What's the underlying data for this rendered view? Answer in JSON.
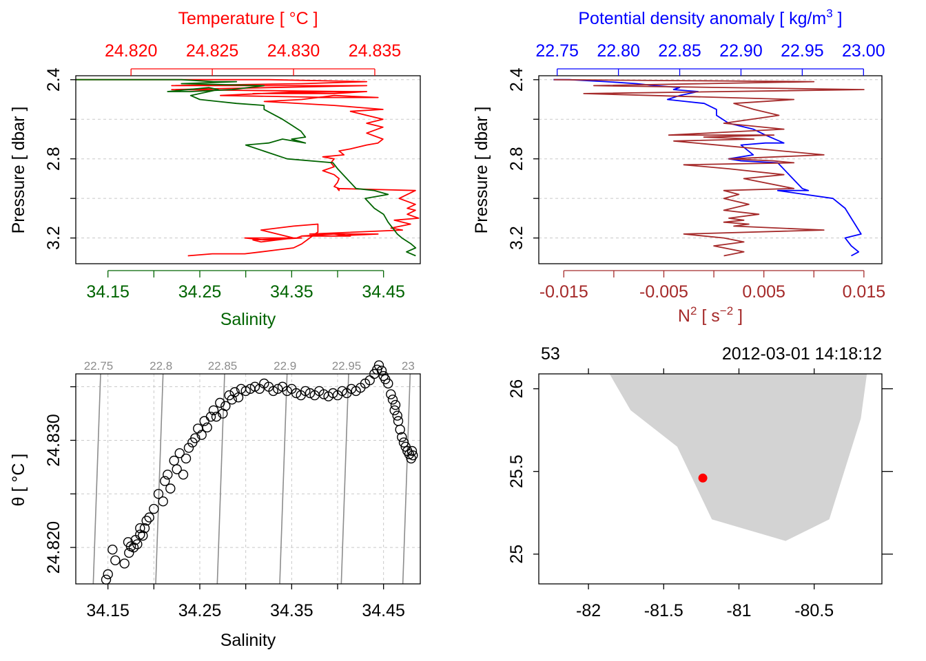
{
  "colors": {
    "temperature": "#ff0000",
    "salinity": "#006400",
    "density": "#0000ff",
    "n2": "#a52a2a",
    "isopycnal": "#8c8c8c",
    "land": "#d3d3d3",
    "station": "#ff0000",
    "grid": "#c8c8c8"
  },
  "chart_data": [
    {
      "type": "line",
      "panel": "profile-temperature-salinity",
      "top_axis": {
        "label": "Temperature [ °C ]",
        "range": [
          24.8166,
          24.8378
        ],
        "ticks": [
          "24.820",
          "24.825",
          "24.830",
          "24.835"
        ]
      },
      "bottom_axis": {
        "label": "Salinity",
        "range": [
          34.115,
          34.49
        ],
        "ticks": [
          "34.15",
          "34.25",
          "34.35",
          "34.45"
        ]
      },
      "y_axis": {
        "label": "Pressure [ dbar ]",
        "range": [
          3.33,
          2.38
        ],
        "inverted": true,
        "ticks": [
          "2.4",
          "2.8",
          "3.2"
        ],
        "grid_ticks": [
          2.4,
          2.6,
          2.8,
          3.0,
          3.2
        ]
      },
      "series": [
        {
          "name": "Temperature",
          "color_key": "temperature",
          "x": [
            24.8166,
            24.8205,
            24.8285,
            24.8345,
            24.8305,
            24.8225,
            24.8345,
            24.8225,
            24.8335,
            24.8275,
            24.8325,
            24.8345,
            24.8305,
            24.8255,
            24.8325,
            24.8352,
            24.8325,
            24.8305,
            24.8282,
            24.8325,
            24.8355,
            24.8335,
            24.8345,
            24.8355,
            24.8345,
            24.8355,
            24.8345,
            24.8355,
            24.8352,
            24.8345,
            24.8335,
            24.8328,
            24.8331,
            24.8318,
            24.8325,
            24.8323,
            24.8325,
            24.8318,
            24.8325,
            24.8328,
            24.8327,
            24.8325,
            24.8328,
            24.8328,
            24.8327,
            24.8375,
            24.8365,
            24.8375,
            24.837,
            24.8375,
            24.837,
            24.8377,
            24.8362,
            24.8372,
            24.836,
            24.8367,
            24.831,
            24.8352,
            24.8325,
            24.8305,
            24.8305,
            24.8325,
            24.8335,
            24.8305,
            24.8302,
            24.8282,
            24.827,
            24.8282,
            24.8305,
            24.8275,
            24.828,
            24.83,
            24.828,
            24.83,
            24.8315,
            24.8315,
            24.8315,
            24.831,
            24.8305,
            24.83,
            24.829,
            24.828,
            24.827,
            24.825,
            24.8235
          ],
          "y": [
            2.4,
            2.4,
            2.4,
            2.41,
            2.42,
            2.43,
            2.43,
            2.45,
            2.46,
            2.47,
            2.47,
            2.46,
            2.46,
            2.48,
            2.49,
            2.49,
            2.48,
            2.5,
            2.51,
            2.53,
            2.55,
            2.56,
            2.58,
            2.6,
            2.62,
            2.64,
            2.67,
            2.7,
            2.72,
            2.73,
            2.75,
            2.76,
            2.78,
            2.79,
            2.8,
            2.82,
            2.84,
            2.86,
            2.88,
            2.9,
            2.92,
            2.94,
            2.95,
            2.96,
            2.95,
            2.96,
            3.0,
            3.03,
            3.05,
            3.06,
            3.08,
            3.1,
            3.11,
            3.13,
            3.15,
            3.16,
            3.18,
            3.18,
            3.19,
            3.19,
            3.19,
            3.18,
            3.19,
            3.19,
            3.2,
            3.2,
            3.2,
            3.21,
            3.2,
            3.21,
            3.22,
            3.2,
            3.16,
            3.14,
            3.13,
            3.14,
            3.17,
            3.2,
            3.23,
            3.25,
            3.26,
            3.27,
            3.28,
            3.28,
            3.29
          ]
        },
        {
          "name": "Salinity",
          "color_key": "salinity",
          "x": [
            34.115,
            34.16,
            34.23,
            34.265,
            34.29,
            34.23,
            34.32,
            34.285,
            34.24,
            34.215,
            34.26,
            34.27,
            34.25,
            34.24,
            34.25,
            34.27,
            34.29,
            34.32,
            34.32,
            34.34,
            34.35,
            34.36,
            34.365,
            34.35,
            34.365,
            34.34,
            34.325,
            34.3,
            34.345,
            34.395,
            34.4,
            34.41,
            34.42,
            34.44,
            34.455,
            34.43,
            34.44,
            34.45,
            34.455,
            34.46,
            34.465,
            34.47,
            34.48,
            34.485,
            34.475,
            34.485
          ],
          "y": [
            2.4,
            2.4,
            2.4,
            2.41,
            2.41,
            2.42,
            2.43,
            2.45,
            2.46,
            2.46,
            2.44,
            2.45,
            2.47,
            2.48,
            2.5,
            2.51,
            2.52,
            2.53,
            2.55,
            2.6,
            2.63,
            2.66,
            2.69,
            2.7,
            2.72,
            2.7,
            2.72,
            2.73,
            2.8,
            2.82,
            2.85,
            2.9,
            2.95,
            2.96,
            2.98,
            3.0,
            3.05,
            3.08,
            3.12,
            3.15,
            3.18,
            3.2,
            3.23,
            3.25,
            3.27,
            3.29
          ]
        }
      ]
    },
    {
      "type": "line",
      "panel": "profile-density-n2",
      "top_axis": {
        "label": "Potential density anomaly [ kg/m",
        "label_sup": "3",
        "label_end": " ]",
        "range": [
          22.735,
          23.015
        ],
        "ticks": [
          "22.75",
          "22.80",
          "22.85",
          "22.90",
          "22.95",
          "23.00"
        ]
      },
      "bottom_axis": {
        "label": "N",
        "label_sup": "2",
        "label_mid": " [ s",
        "label_sup2": "−2",
        "label_end": " ]",
        "range": [
          -0.0175,
          0.0168
        ],
        "ticks": [
          "-0.015",
          "-0.005",
          "0.005",
          "0.015"
        ],
        "minor_ticks": [
          -0.01,
          0.0,
          0.01
        ]
      },
      "y_axis": {
        "label": "Pressure [ dbar ]",
        "range": [
          3.33,
          2.38
        ],
        "inverted": true,
        "ticks": [
          "2.4",
          "2.8",
          "3.2"
        ],
        "grid_ticks": [
          2.4,
          2.6,
          2.8,
          3.0,
          3.2
        ]
      },
      "series": [
        {
          "name": "Potential density anomaly",
          "color_key": "density",
          "x": [
            22.747,
            22.76,
            22.79,
            22.815,
            22.83,
            22.85,
            22.845,
            22.865,
            22.85,
            22.84,
            22.855,
            22.87,
            22.88,
            22.88,
            22.89,
            22.91,
            22.92,
            22.935,
            22.92,
            22.9,
            22.91,
            22.89,
            22.9,
            22.93,
            22.95,
            22.955,
            22.93,
            22.975,
            22.985,
            22.99,
            22.993,
            22.998,
            22.985,
            22.99,
            22.996,
            22.99
          ],
          "y": [
            2.4,
            2.4,
            2.41,
            2.42,
            2.43,
            2.44,
            2.45,
            2.46,
            2.48,
            2.5,
            2.51,
            2.52,
            2.55,
            2.58,
            2.62,
            2.65,
            2.68,
            2.72,
            2.72,
            2.73,
            2.78,
            2.8,
            2.81,
            2.82,
            2.95,
            2.96,
            2.96,
            3.0,
            3.05,
            3.1,
            3.13,
            3.18,
            3.2,
            3.24,
            3.27,
            3.29
          ]
        },
        {
          "name": "N2",
          "color_key": "n2",
          "x": [
            -0.016,
            0.01,
            -0.012,
            0.015,
            -0.013,
            0.008,
            0.002,
            0.004,
            0.0065,
            0.001,
            0.007,
            -0.0045,
            0.006,
            -0.001,
            0.004,
            -0.004,
            0.011,
            0.0015,
            0.006,
            0.008,
            -0.003,
            0.0015,
            0.007,
            0.003,
            0.008,
            0.001,
            0.0025,
            0.001,
            0.0035,
            0.001,
            0.0045,
            0.0015,
            0.003,
            0.001,
            0.0035,
            0.002,
            0.011,
            -0.003,
            0.001,
            0.003,
            0.0,
            0.003,
            0.001
          ],
          "y": [
            2.4,
            2.41,
            2.43,
            2.45,
            2.47,
            2.5,
            2.52,
            2.55,
            2.58,
            2.62,
            2.65,
            2.68,
            2.68,
            2.69,
            2.7,
            2.71,
            2.78,
            2.8,
            2.81,
            2.82,
            2.83,
            2.85,
            2.88,
            2.9,
            2.95,
            2.96,
            2.98,
            3.0,
            3.03,
            3.06,
            3.08,
            3.1,
            3.11,
            3.12,
            3.13,
            3.14,
            3.16,
            3.18,
            3.2,
            3.22,
            3.24,
            3.27,
            3.29
          ]
        }
      ]
    },
    {
      "type": "scatter",
      "panel": "ts-diagram",
      "x_axis": {
        "label": "Salinity",
        "range": [
          34.115,
          34.49
        ],
        "ticks": [
          "34.15",
          "34.25",
          "34.35",
          "34.45"
        ],
        "grid": [
          34.15,
          34.2,
          34.25,
          34.3,
          34.35,
          34.4,
          34.45
        ]
      },
      "y_axis": {
        "label": "θ [ °C ]",
        "range": [
          24.8166,
          24.8362
        ],
        "ticks": [
          "24.820",
          "24.830"
        ],
        "tick_values": [
          24.82,
          24.83
        ],
        "grid": [
          24.82,
          24.825,
          24.83,
          24.835
        ]
      },
      "isopycnals": [
        {
          "label": "22.75",
          "s_top": 34.142,
          "s_bottom": 34.134
        },
        {
          "label": "22.8",
          "s_top": 34.21,
          "s_bottom": 34.202
        },
        {
          "label": "22.85",
          "s_top": 34.277,
          "s_bottom": 34.269
        },
        {
          "label": "22.9",
          "s_top": 34.345,
          "s_bottom": 34.337
        },
        {
          "label": "22.95",
          "s_top": 34.412,
          "s_bottom": 34.404
        },
        {
          "label": "23",
          "s_top": 34.479,
          "s_bottom": 34.471
        }
      ],
      "points_s": [
        34.15,
        34.148,
        34.158,
        34.155,
        34.168,
        34.173,
        34.175,
        34.172,
        34.178,
        34.18,
        34.182,
        34.185,
        34.188,
        34.19,
        34.192,
        34.185,
        34.195,
        34.2,
        34.205,
        34.21,
        34.212,
        34.215,
        34.218,
        34.222,
        34.225,
        34.228,
        34.232,
        34.235,
        34.238,
        34.242,
        34.245,
        34.248,
        34.252,
        34.255,
        34.258,
        34.262,
        34.265,
        34.268,
        34.272,
        34.275,
        34.278,
        34.282,
        34.285,
        34.288,
        34.292,
        34.295,
        34.3,
        34.305,
        34.31,
        34.315,
        34.32,
        34.325,
        34.33,
        34.335,
        34.34,
        34.345,
        34.35,
        34.355,
        34.36,
        34.365,
        34.37,
        34.375,
        34.38,
        34.385,
        34.39,
        34.395,
        34.4,
        34.405,
        34.41,
        34.415,
        34.42,
        34.425,
        34.43,
        34.435,
        34.44,
        34.443,
        34.445,
        34.448,
        34.45,
        34.452,
        34.455,
        34.458,
        34.46,
        34.462,
        34.463,
        34.465,
        34.466,
        34.468,
        34.47,
        34.472,
        34.474,
        34.476,
        34.478,
        34.48,
        34.481,
        34.482
      ],
      "points_t": [
        24.8175,
        24.817,
        24.8188,
        24.8198,
        24.8185,
        24.8195,
        24.8201,
        24.8205,
        24.82,
        24.8207,
        24.8203,
        24.8212,
        24.8211,
        24.8218,
        24.8225,
        24.8218,
        24.8228,
        24.8236,
        24.825,
        24.8243,
        24.8262,
        24.8268,
        24.8255,
        24.8281,
        24.8273,
        24.8288,
        24.8268,
        24.8283,
        24.8293,
        24.8298,
        24.8302,
        24.8311,
        24.8305,
        24.8318,
        24.8312,
        24.8322,
        24.8328,
        24.8322,
        24.8335,
        24.8325,
        24.8332,
        24.8342,
        24.8338,
        24.8345,
        24.834,
        24.8348,
        24.8346,
        24.8348,
        24.835,
        24.8348,
        24.8353,
        24.835,
        24.8346,
        24.8348,
        24.835,
        24.8346,
        24.8348,
        24.8344,
        24.8342,
        24.8346,
        24.8344,
        24.8342,
        24.8346,
        24.8343,
        24.8341,
        24.8344,
        24.8342,
        24.8346,
        24.8344,
        24.8348,
        24.8346,
        24.8349,
        24.8353,
        24.8356,
        24.8362,
        24.8366,
        24.837,
        24.8365,
        24.836,
        24.8357,
        24.8353,
        24.8343,
        24.8338,
        24.8328,
        24.8333,
        24.8323,
        24.8318,
        24.831,
        24.8303,
        24.8298,
        24.8294,
        24.829,
        24.8287,
        24.8283,
        24.829,
        24.8286
      ]
    },
    {
      "type": "map",
      "panel": "station-map",
      "top_labels": {
        "station": "53",
        "time": "2012-03-01 14:18:12"
      },
      "x_axis": {
        "range": [
          -82.33,
          -80.05
        ],
        "ticks": [
          "-82",
          "-81.5",
          "-81",
          "-80.5"
        ],
        "tick_values": [
          -82,
          -81.5,
          -81,
          -80.5
        ]
      },
      "y_axis": {
        "range": [
          24.82,
          26.09
        ],
        "ticks": [
          "25",
          "25.5",
          "26"
        ],
        "tick_values": [
          25,
          25.5,
          26
        ]
      },
      "land": {
        "lon": [
          -81.86,
          -81.72,
          -81.41,
          -81.18,
          -80.69,
          -80.4,
          -80.19,
          -80.15,
          -80.05,
          -80.05,
          -81.86
        ],
        "lat": [
          26.09,
          25.87,
          25.65,
          25.21,
          25.08,
          25.21,
          25.82,
          26.09,
          26.09,
          26.09,
          26.09
        ]
      },
      "station": {
        "lon": -81.24,
        "lat": 25.46
      }
    }
  ]
}
